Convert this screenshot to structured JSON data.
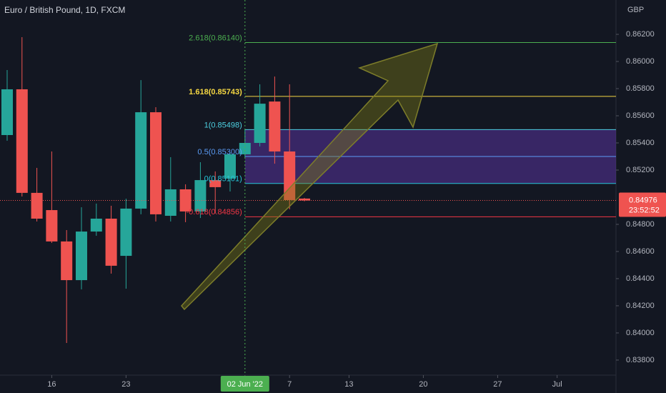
{
  "chart_data": {
    "type": "candlestick",
    "title": "Euro / British Pound, 1D, FXCM",
    "currency": "GBP",
    "up_color": "#26a69a",
    "down_color": "#ef5350",
    "open": [
      0.85458,
      0.85795,
      0.85032,
      0.84905,
      0.84674,
      0.84389,
      0.84747,
      0.84842,
      0.84568,
      0.84916,
      0.85626,
      0.84863,
      0.85058,
      0.84895,
      0.85126,
      0.85137,
      0.85316,
      0.854,
      0.85705,
      0.85337,
      0.8499
    ],
    "high": [
      0.85937,
      0.86179,
      0.85216,
      0.85337,
      0.84758,
      0.84926,
      0.84953,
      0.84937,
      0.84989,
      0.85863,
      0.85663,
      0.85295,
      0.85095,
      0.85258,
      0.8519,
      0.85332,
      0.85505,
      0.85832,
      0.85889,
      0.85832,
      0.84995
    ],
    "low": [
      0.85416,
      0.85005,
      0.84821,
      0.84663,
      0.83926,
      0.84321,
      0.84716,
      0.84437,
      0.84326,
      0.84874,
      0.84821,
      0.84821,
      0.84816,
      0.84847,
      0.8488,
      0.85042,
      0.85295,
      0.85374,
      0.85247,
      0.84911,
      0.8497
    ],
    "close": [
      0.85795,
      0.85032,
      0.84842,
      0.84674,
      0.84389,
      0.84747,
      0.84842,
      0.84495,
      0.84916,
      0.85626,
      0.84874,
      0.85058,
      0.84895,
      0.85126,
      0.85074,
      0.85316,
      0.854,
      0.85689,
      0.85337,
      0.84979,
      0.84976
    ],
    "xlim": [
      -0.48,
      40.96
    ],
    "xticks": [
      {
        "value": 3,
        "label": "16"
      },
      {
        "value": 8,
        "label": "23"
      },
      {
        "value": 16,
        "label": "02 Jun '22"
      },
      {
        "value": 19,
        "label": "7"
      },
      {
        "value": 23,
        "label": "13"
      },
      {
        "value": 28,
        "label": "20"
      },
      {
        "value": 33,
        "label": "27"
      },
      {
        "value": 37,
        "label": "Jul"
      }
    ],
    "highlight_xtick": 2,
    "ylim": [
      0.83689,
      0.86453
    ],
    "yticks": [
      {
        "value": 0.862,
        "label": "0.86200"
      },
      {
        "value": 0.86,
        "label": "0.86000"
      },
      {
        "value": 0.858,
        "label": "0.85800"
      },
      {
        "value": 0.856,
        "label": "0.85600"
      },
      {
        "value": 0.854,
        "label": "0.85400"
      },
      {
        "value": 0.852,
        "label": "0.85200"
      },
      {
        "value": 0.848,
        "label": "0.84800"
      },
      {
        "value": 0.846,
        "label": "0.84600"
      },
      {
        "value": 0.844,
        "label": "0.84400"
      },
      {
        "value": 0.842,
        "label": "0.84200"
      },
      {
        "value": 0.84,
        "label": "0.84000"
      },
      {
        "value": 0.838,
        "label": "0.83800"
      }
    ],
    "last_price": 0.84976,
    "countdown": "23:52:52",
    "fib_start": 16,
    "fib_levels": [
      {
        "value": 0.8614,
        "label": "2.618(0.86140)",
        "color": "#4caf50"
      },
      {
        "value": 0.85743,
        "label": "1.618(0.85743)",
        "color": "#f5d742"
      },
      {
        "value": 0.85498,
        "label": "1(0.85498)",
        "color": "#4dd0e1"
      },
      {
        "value": 0.853,
        "label": "0.5(0.85300)",
        "color": "#5b9cf6"
      },
      {
        "value": 0.85101,
        "label": "0(0.85101)",
        "color": "#26c6da"
      },
      {
        "value": 0.84856,
        "label": "-0.618(0.84856)",
        "color": "#f23645"
      }
    ]
  }
}
